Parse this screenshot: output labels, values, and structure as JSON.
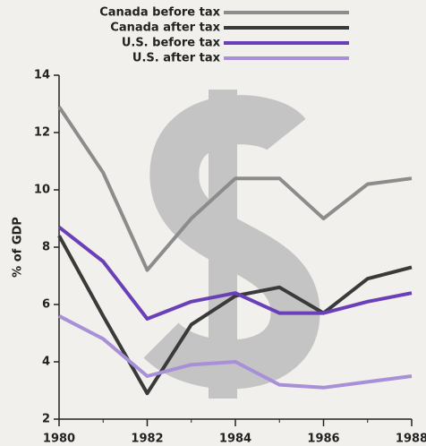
{
  "chart_data": {
    "type": "line",
    "y_label": "% of GDP",
    "x": [
      1980,
      1981,
      1982,
      1983,
      1984,
      1985,
      1986,
      1987,
      1988
    ],
    "series": [
      {
        "name": "Canada before tax",
        "color": "#8c8c8c",
        "values": [
          12.9,
          10.6,
          7.2,
          9.0,
          10.4,
          10.4,
          9.0,
          10.2,
          10.4
        ]
      },
      {
        "name": "Canada after tax",
        "color": "#3a3a3a",
        "values": [
          8.4,
          5.6,
          2.9,
          5.3,
          6.3,
          6.6,
          5.7,
          6.9,
          7.3
        ]
      },
      {
        "name": "U.S. before tax",
        "color": "#6a40b8",
        "values": [
          8.7,
          7.5,
          5.5,
          6.1,
          6.4,
          5.7,
          5.7,
          6.1,
          6.4
        ]
      },
      {
        "name": "U.S. after tax",
        "color": "#a890d8",
        "values": [
          5.6,
          4.8,
          3.5,
          3.9,
          4.0,
          3.2,
          3.1,
          3.3,
          3.5
        ]
      }
    ],
    "xlim": [
      1980,
      1988
    ],
    "xticks": [
      1980,
      1982,
      1984,
      1986,
      1988
    ],
    "ylim": [
      2,
      14
    ],
    "yticks": [
      2,
      4,
      6,
      8,
      10,
      12,
      14
    ],
    "legend": "top"
  }
}
